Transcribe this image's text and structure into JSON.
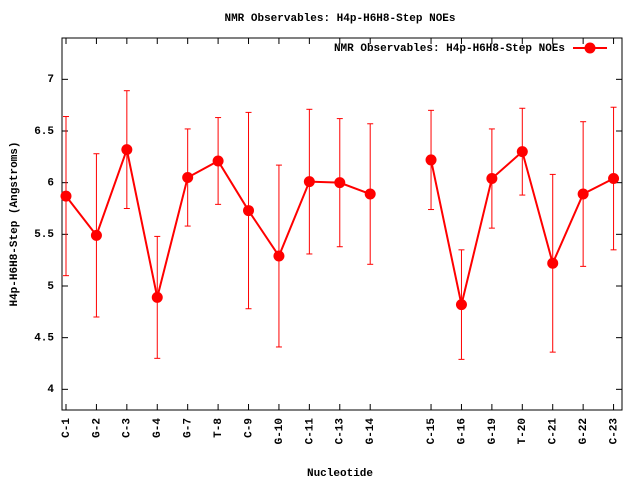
{
  "chart_data": {
    "type": "line",
    "title": "NMR Observables: H4p-H6H8-Step NOEs",
    "x_label": "Nucleotide",
    "y_label": "H4p-H6H8-Step (Angstroms)",
    "categories": [
      "C-1",
      "G-2",
      "C-3",
      "G-4",
      "G-7",
      "T-8",
      "C-9",
      "G-10",
      "C-11",
      "C-13",
      "G-14",
      null,
      "C-15",
      "G-16",
      "G-19",
      "T-20",
      "C-21",
      "G-22",
      "C-23"
    ],
    "series": [
      {
        "name": "NMR Observables: H4p-H6H8-Step NOEs",
        "color": "#ff0000",
        "values": [
          5.87,
          5.49,
          6.32,
          4.89,
          6.05,
          6.21,
          5.73,
          5.29,
          6.01,
          6.0,
          5.89,
          null,
          6.22,
          4.82,
          6.04,
          6.3,
          5.22,
          5.89,
          6.04
        ],
        "errors": [
          0.77,
          0.79,
          0.57,
          0.59,
          0.47,
          0.42,
          0.95,
          0.88,
          0.7,
          0.62,
          0.68,
          null,
          0.48,
          0.53,
          0.48,
          0.42,
          0.86,
          0.7,
          0.69
        ]
      }
    ],
    "ylim": [
      3.8,
      7.4
    ],
    "yticks": [
      4,
      4.5,
      5,
      5.5,
      6,
      6.5,
      7
    ],
    "legend": "top-right"
  }
}
